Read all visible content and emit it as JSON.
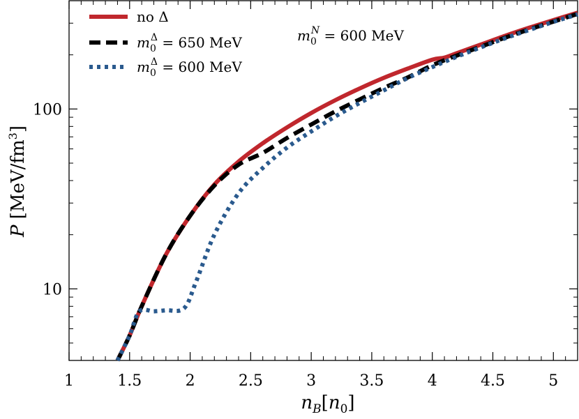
{
  "chart_data": {
    "type": "line",
    "title": "",
    "xlabel": "n_B [n_0]",
    "ylabel": "P [MeV/fm^3]",
    "xlim": [
      1.0,
      5.2
    ],
    "ylim": [
      4.0,
      400.0
    ],
    "yscale": "log",
    "grid": false,
    "legend_position": "top-left",
    "annotation": "m_0^N = 600 MeV",
    "x_ticks": [
      1,
      1.5,
      2,
      2.5,
      3,
      3.5,
      4,
      4.5,
      5
    ],
    "x_tick_labels": [
      "1",
      "1.5",
      "2",
      "2.5",
      "3",
      "3.5",
      "4",
      "4.5",
      "5"
    ],
    "y_ticks": [
      10,
      100
    ],
    "y_tick_labels": [
      "10",
      "100"
    ],
    "series": [
      {
        "name": "no Δ",
        "color": "#c0272d",
        "dash": "solid",
        "x": [
          1.4,
          1.5,
          1.6,
          1.8,
          2.0,
          2.2,
          2.4,
          2.6,
          2.8,
          3.0,
          3.2,
          3.4,
          3.6,
          3.8,
          4.0,
          4.1,
          4.2,
          4.4,
          4.6,
          4.8,
          5.0,
          5.2
        ],
        "y": [
          4.0,
          5.5,
          8.0,
          15.5,
          25.5,
          38.0,
          51.0,
          64.5,
          79.0,
          95.0,
          112.0,
          130.0,
          149.0,
          168.0,
          188.0,
          193.0,
          204.0,
          228.0,
          255.0,
          283.0,
          312.0,
          343.0
        ]
      },
      {
        "name": "m_0^Δ = 650 MeV",
        "color": "#000000",
        "dash": "dashed",
        "x": [
          1.4,
          1.5,
          1.6,
          1.8,
          2.0,
          2.2,
          2.4,
          2.6,
          2.8,
          3.0,
          3.2,
          3.4,
          3.6,
          3.8,
          4.0,
          4.2,
          4.4,
          4.6,
          4.8,
          5.0,
          5.2
        ],
        "y": [
          4.0,
          5.5,
          8.0,
          15.5,
          25.5,
          37.5,
          49.0,
          57.0,
          69.0,
          82.0,
          97.0,
          113.0,
          131.0,
          150.0,
          175.0,
          198.0,
          222.0,
          249.0,
          277.0,
          306.0,
          338.0
        ]
      },
      {
        "name": "m_0^Δ = 600 MeV",
        "color": "#2a5a8e",
        "dash": "dotted",
        "x": [
          1.4,
          1.5,
          1.58,
          1.7,
          1.8,
          1.95,
          2.05,
          2.2,
          2.4,
          2.6,
          2.8,
          3.0,
          3.2,
          3.4,
          3.6,
          3.8,
          4.0,
          4.2,
          4.4,
          4.6,
          4.8,
          5.0,
          5.2
        ],
        "y": [
          4.0,
          5.5,
          7.5,
          7.5,
          7.6,
          7.8,
          11.0,
          20.0,
          34.0,
          47.0,
          61.0,
          75.0,
          91.0,
          108.0,
          127.0,
          149.0,
          171.0,
          195.0,
          220.0,
          247.0,
          275.0,
          305.0,
          336.0
        ]
      }
    ]
  },
  "legend": {
    "entries": [
      "no Δ",
      "m_0^Δ = 650 MeV",
      "m_0^Δ = 600 MeV"
    ]
  }
}
